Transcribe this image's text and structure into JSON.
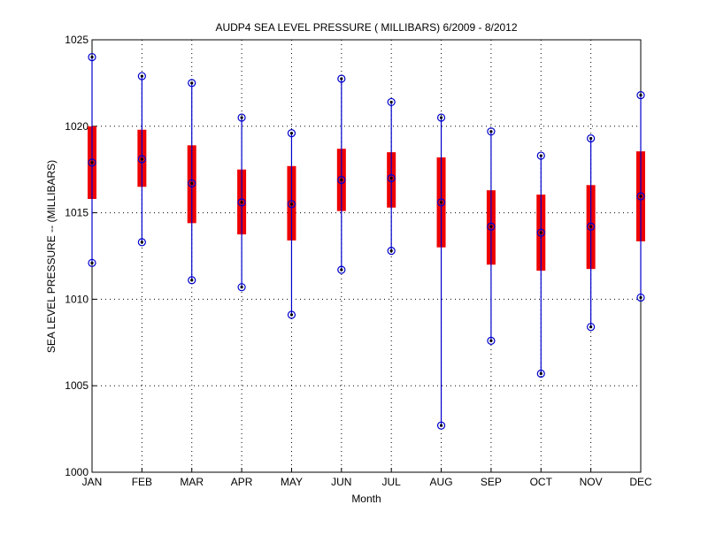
{
  "chart_data": {
    "type": "box",
    "title": "AUDP4  SEA LEVEL PRESSURE ( MILLIBARS) 6/2009 - 8/2012",
    "xlabel": "Month",
    "ylabel": "SEA LEVEL PRESSURE -- (MILLIBARS)",
    "ylim": [
      1000,
      1025
    ],
    "yticks": [
      "1000",
      "1005",
      "1010",
      "1015",
      "1020",
      "1025"
    ],
    "grid": true,
    "categories": [
      "JAN",
      "FEB",
      "MAR",
      "APR",
      "MAY",
      "JUN",
      "JUL",
      "AUG",
      "SEP",
      "OCT",
      "NOV",
      "DEC"
    ],
    "series": [
      {
        "name": "max",
        "values": [
          1024.0,
          1022.9,
          1022.5,
          1020.5,
          1019.6,
          1022.75,
          1021.4,
          1020.5,
          1019.7,
          1018.3,
          1019.3,
          1021.8
        ]
      },
      {
        "name": "box_top",
        "values": [
          1020.0,
          1019.8,
          1018.9,
          1017.5,
          1017.7,
          1018.7,
          1018.5,
          1018.2,
          1016.3,
          1016.05,
          1016.6,
          1018.55
        ]
      },
      {
        "name": "mean",
        "values": [
          1017.9,
          1018.1,
          1016.7,
          1015.6,
          1015.5,
          1016.9,
          1017.0,
          1015.6,
          1014.2,
          1013.85,
          1014.2,
          1015.95
        ]
      },
      {
        "name": "box_bottom",
        "values": [
          1015.8,
          1016.5,
          1014.4,
          1013.75,
          1013.4,
          1015.1,
          1015.3,
          1013.0,
          1012.0,
          1011.65,
          1011.75,
          1013.35
        ]
      },
      {
        "name": "min",
        "values": [
          1012.1,
          1013.3,
          1011.1,
          1010.7,
          1009.1,
          1011.7,
          1012.8,
          1002.7,
          1007.6,
          1005.7,
          1008.4,
          1010.1
        ]
      }
    ],
    "colors": {
      "whisker": "#0000cc",
      "box": "#ee0000",
      "marker_dot": "#000000"
    }
  }
}
